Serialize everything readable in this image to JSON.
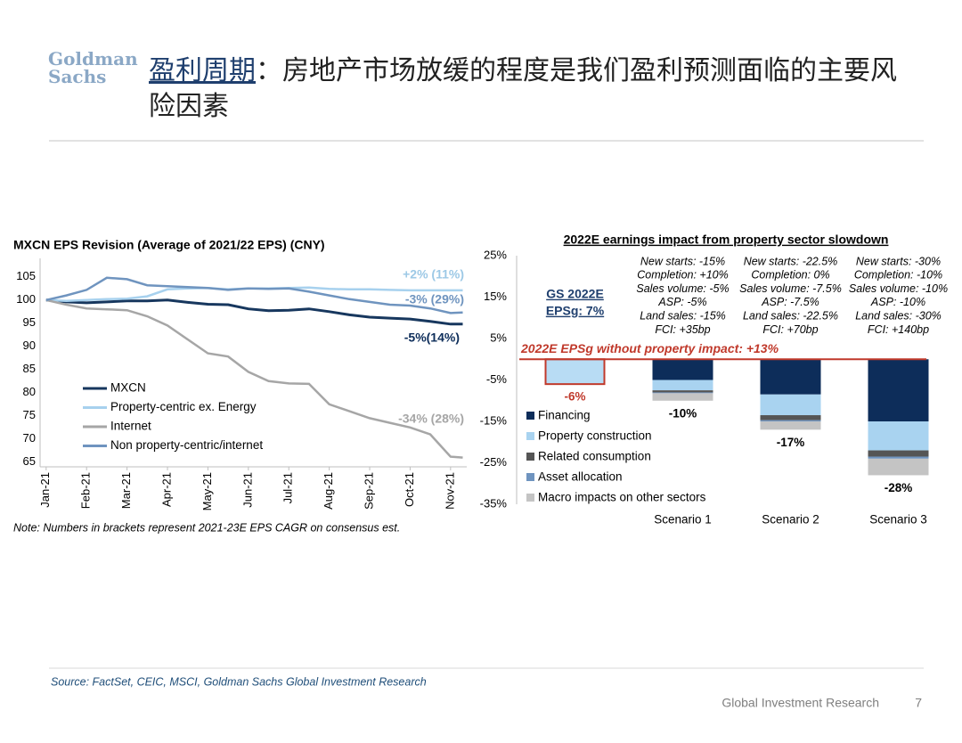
{
  "header": {
    "logo": [
      "Goldman",
      "Sachs"
    ],
    "title_highlight": "盈利周期",
    "title_rest": "：房地产市场放缓的程度是我们盈利预测面临的主要风险因素"
  },
  "chart_data": [
    {
      "type": "line",
      "title": "MXCN EPS Revision (Average of 2021/22 EPS) (CNY)",
      "x": [
        0,
        0.5,
        1,
        1.5,
        2,
        2.5,
        3,
        3.5,
        4,
        4.5,
        5,
        5.5,
        6,
        6.5,
        7,
        7.5,
        8,
        8.5,
        9,
        9.5,
        10,
        10.3
      ],
      "xlim": [
        -0.15,
        10.4
      ],
      "xticks": [
        {
          "value": 0,
          "label": "Jan-21"
        },
        {
          "value": 1,
          "label": "Feb-21"
        },
        {
          "value": 2,
          "label": "Mar-21"
        },
        {
          "value": 3,
          "label": "Apr-21"
        },
        {
          "value": 4,
          "label": "May-21"
        },
        {
          "value": 5,
          "label": "Jun-21"
        },
        {
          "value": 6,
          "label": "Jul-21"
        },
        {
          "value": 7,
          "label": "Aug-21"
        },
        {
          "value": 8,
          "label": "Sep-21"
        },
        {
          "value": 9,
          "label": "Oct-21"
        },
        {
          "value": 10,
          "label": "Nov-21"
        }
      ],
      "ylim": [
        64,
        109
      ],
      "yticks": [
        65,
        70,
        75,
        80,
        85,
        90,
        95,
        100,
        105
      ],
      "legend": "lower left",
      "series": [
        {
          "name": "MXCN",
          "color": "#17375e",
          "values": [
            100,
            99.6,
            99.4,
            99.6,
            99.8,
            99.8,
            100,
            99.5,
            99.1,
            99,
            98.1,
            97.7,
            97.8,
            98.1,
            97.5,
            96.8,
            96.3,
            96.1,
            95.9,
            95.4,
            94.8,
            94.8
          ]
        },
        {
          "name": "Property-centric ex. Energy",
          "color": "#a7d1ee",
          "values": [
            100,
            99.8,
            100,
            100.2,
            100.3,
            100.8,
            102.3,
            102.5,
            102.6,
            102.3,
            102.5,
            102.5,
            102.6,
            102.7,
            102.4,
            102.3,
            102.3,
            102.2,
            102.1,
            102.1,
            102.1,
            102.1
          ]
        },
        {
          "name": "Internet",
          "color": "#a6a6a6",
          "values": [
            100,
            99,
            98.2,
            98,
            97.8,
            96.5,
            94.5,
            91.5,
            88.5,
            87.8,
            84.5,
            82.5,
            82,
            81.9,
            77.5,
            76,
            74.5,
            73.5,
            72.5,
            71,
            66.2,
            66
          ]
        },
        {
          "name": "Non property-centric/internet",
          "color": "#6f94bf",
          "values": [
            100,
            101,
            102.2,
            104.8,
            104.5,
            103.2,
            103,
            102.8,
            102.6,
            102.2,
            102.5,
            102.4,
            102.5,
            101.8,
            101,
            100.2,
            99.6,
            99,
            98.8,
            98.2,
            97.2,
            97.3
          ]
        }
      ],
      "annotations": [
        {
          "text": "+2% (11%)",
          "color": "#9dc9e6"
        },
        {
          "text": "-3% (29%)",
          "color": "#6f94bf"
        },
        {
          "text": "-5%(14%)",
          "color": "#0d2d5a"
        },
        {
          "text": "-34% (28%)",
          "color": "#a6a6a6"
        }
      ],
      "note": "Note: Numbers in brackets represent 2021-23E EPS CAGR on consensus est."
    },
    {
      "type": "stacked-bar",
      "title": "2022E earnings impact from property sector slowdown",
      "categories": [
        null,
        "Scenario 1",
        "Scenario 2",
        "Scenario 3"
      ],
      "ylim": [
        -35,
        25
      ],
      "yticks": [
        {
          "value": 25,
          "label": "25%"
        },
        {
          "value": 15,
          "label": "15%"
        },
        {
          "value": 5,
          "label": "5%"
        },
        {
          "value": -5,
          "label": "-5%"
        },
        {
          "value": -15,
          "label": "-15%"
        },
        {
          "value": -25,
          "label": "-25%"
        },
        {
          "value": -35,
          "label": "-35%"
        }
      ],
      "legend": "lower left",
      "series": [
        {
          "name": "Financing",
          "color": "#0d2d5a",
          "values": [
            null,
            -5,
            -8.5,
            -15
          ]
        },
        {
          "name": "Property construction",
          "color": "#a9d3f0",
          "values": [
            null,
            -2.5,
            -5,
            -7
          ]
        },
        {
          "name": "Related consumption",
          "color": "#555555",
          "values": [
            null,
            -0.5,
            -1.2,
            -1.5
          ]
        },
        {
          "name": "Asset allocation",
          "color": "#6f94bf",
          "values": [
            null,
            -0.2,
            -0.3,
            -0.5
          ]
        },
        {
          "name": "Macro impacts on other sectors",
          "color": "#c4c4c4",
          "values": [
            null,
            -1.8,
            -2,
            -4
          ]
        }
      ],
      "totals": {
        "values": [
          -6,
          -10,
          -17,
          -28
        ],
        "value_labels": [
          "-6%",
          "-10%",
          "-17%",
          "-28%"
        ]
      },
      "gs_label": [
        "GS 2022E",
        "EPSg: 7%"
      ],
      "baseline_label": "2022E EPSg without property impact: +13%",
      "scenario_notes": [
        [
          "New starts: -15%",
          "Completion: +10%",
          "Sales volume: -5%",
          "ASP: -5%",
          "Land sales: -15%",
          "FCI: +35bp"
        ],
        [
          "New starts: -22.5%",
          "Completion: 0%",
          "Sales volume: -7.5%",
          "ASP: -7.5%",
          "Land sales: -22.5%",
          "FCI: +70bp"
        ],
        [
          "New starts: -30%",
          "Completion: -10%",
          "Sales volume: -10%",
          "ASP: -10%",
          "Land sales: -30%",
          "FCI: +140bp"
        ]
      ]
    }
  ],
  "source": "Source: FactSet, CEIC, MSCI, Goldman Sachs Global Investment Research",
  "footer": {
    "text": "Global Investment Research",
    "page": "7"
  }
}
